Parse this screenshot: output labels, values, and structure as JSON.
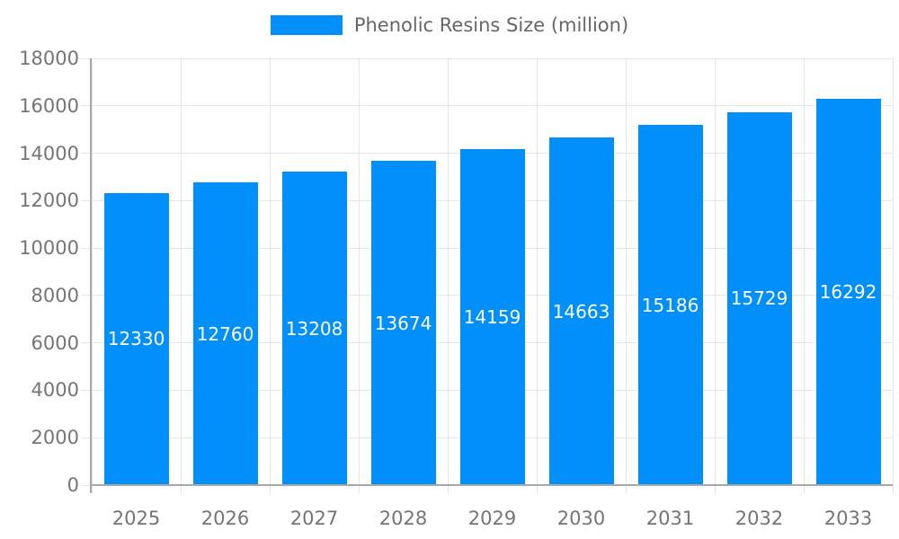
{
  "chart_data": {
    "type": "bar",
    "title": "Phenolic Resins Size (million)",
    "categories": [
      "2025",
      "2026",
      "2027",
      "2028",
      "2029",
      "2030",
      "2031",
      "2032",
      "2033"
    ],
    "values": [
      12330,
      12760,
      13208,
      13674,
      14159,
      14663,
      15186,
      15729,
      16292
    ],
    "xlabel": "",
    "ylabel": "",
    "ylim": [
      0,
      18000
    ],
    "ytick_step": 2000,
    "grid": "both",
    "legend_position": "top",
    "legend_entries": [
      "Phenolic Resins Size (million)"
    ],
    "colors": {
      "bar": "#008FFB",
      "grid": "#e6e6e6",
      "axis": "#a8a8a8",
      "tick_text": "#757575",
      "legend_text": "#666666",
      "bar_label_text": "#ffffff",
      "background": "#ffffff"
    }
  }
}
